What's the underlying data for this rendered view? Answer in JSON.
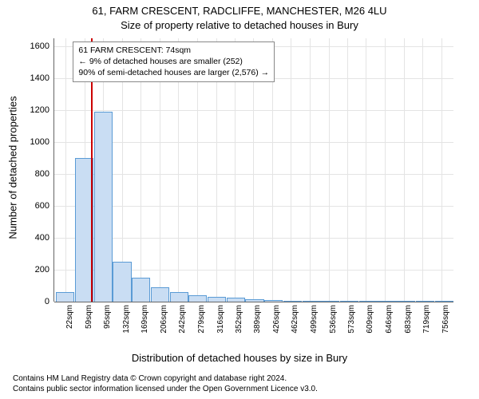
{
  "title_main": "61, FARM CRESCENT, RADCLIFFE, MANCHESTER, M26 4LU",
  "title_sub": "Size of property relative to detached houses in Bury",
  "y_axis_label": "Number of detached properties",
  "x_axis_label": "Distribution of detached houses by size in Bury",
  "histogram": {
    "type": "histogram",
    "x_min": 0,
    "x_max": 780,
    "y_min": 0,
    "y_max": 1650,
    "y_ticks": [
      0,
      200,
      400,
      600,
      800,
      1000,
      1200,
      1400,
      1600
    ],
    "x_tick_labels": [
      "22sqm",
      "59sqm",
      "95sqm",
      "132sqm",
      "169sqm",
      "206sqm",
      "242sqm",
      "279sqm",
      "316sqm",
      "352sqm",
      "389sqm",
      "426sqm",
      "462sqm",
      "499sqm",
      "536sqm",
      "573sqm",
      "609sqm",
      "646sqm",
      "683sqm",
      "719sqm",
      "756sqm"
    ],
    "x_tick_positions": [
      22,
      59,
      95,
      132,
      169,
      206,
      242,
      279,
      316,
      352,
      389,
      426,
      462,
      499,
      536,
      573,
      609,
      646,
      683,
      719,
      756
    ],
    "bin_width": 37,
    "bins": [
      {
        "x": 3.5,
        "count": 60
      },
      {
        "x": 40.5,
        "count": 900
      },
      {
        "x": 77.5,
        "count": 1190
      },
      {
        "x": 114.5,
        "count": 250
      },
      {
        "x": 151.5,
        "count": 150
      },
      {
        "x": 188.5,
        "count": 90
      },
      {
        "x": 225.5,
        "count": 60
      },
      {
        "x": 262.5,
        "count": 40
      },
      {
        "x": 299.5,
        "count": 30
      },
      {
        "x": 336.5,
        "count": 25
      },
      {
        "x": 373.5,
        "count": 15
      },
      {
        "x": 410.5,
        "count": 8
      },
      {
        "x": 447.5,
        "count": 6
      },
      {
        "x": 484.5,
        "count": 4
      },
      {
        "x": 521.5,
        "count": 3
      },
      {
        "x": 558.5,
        "count": 3
      },
      {
        "x": 595.5,
        "count": 2
      },
      {
        "x": 632.5,
        "count": 2
      },
      {
        "x": 669.5,
        "count": 1
      },
      {
        "x": 706.5,
        "count": 1
      },
      {
        "x": 743.5,
        "count": 1
      }
    ],
    "bar_fill": "#c9ddf3",
    "bar_stroke": "#5a9bd5",
    "grid_color": "#e4e4e4",
    "axis_color": "#666666",
    "marker_x": 74,
    "marker_color": "#cc0000",
    "background_color": "#ffffff"
  },
  "annotation": {
    "line1": "61 FARM CRESCENT: 74sqm",
    "line2": "← 9% of detached houses are smaller (252)",
    "line3": "90% of semi-detached houses are larger (2,576) →"
  },
  "attribution_line1": "Contains HM Land Registry data © Crown copyright and database right 2024.",
  "attribution_line2": "Contains public sector information licensed under the Open Government Licence v3.0."
}
